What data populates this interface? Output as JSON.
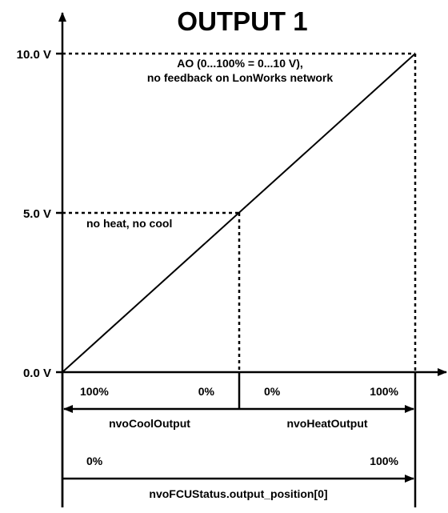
{
  "title": "OUTPUT 1",
  "y_axis": {
    "ticks": [
      {
        "value": 10.0,
        "label": "10.0 V"
      },
      {
        "value": 5.0,
        "label": "5.0 V"
      },
      {
        "value": 0.0,
        "label": "0.0 V"
      }
    ]
  },
  "annotations": {
    "ao_line1": "AO (0...100% = 0...10 V),",
    "ao_line2": "no feedback on LonWorks network",
    "mid_label": "no heat, no cool"
  },
  "cool_output": {
    "name": "nvoCoolOutput",
    "start_label": "100%",
    "end_label": "0%"
  },
  "heat_output": {
    "name": "nvoHeatOutput",
    "start_label": "0%",
    "end_label": "100%"
  },
  "status_output": {
    "name": "nvoFCUStatus.output_position[0]",
    "start_label": "0%",
    "end_label": "100%"
  },
  "chart_data": {
    "type": "line",
    "title": "OUTPUT 1",
    "xlabel": "",
    "ylabel": "",
    "x_unit": "%",
    "y_unit": "V",
    "ylim": [
      0,
      10
    ],
    "xlim": [
      0,
      100
    ],
    "series": [
      {
        "x": [
          0,
          50,
          100
        ],
        "y": [
          0.0,
          5.0,
          10.0
        ]
      }
    ],
    "yticks": [
      "10.0 V",
      "5.0 V",
      "0.0 V"
    ]
  },
  "colors": {
    "ink": "#000000",
    "background": "#ffffff"
  }
}
